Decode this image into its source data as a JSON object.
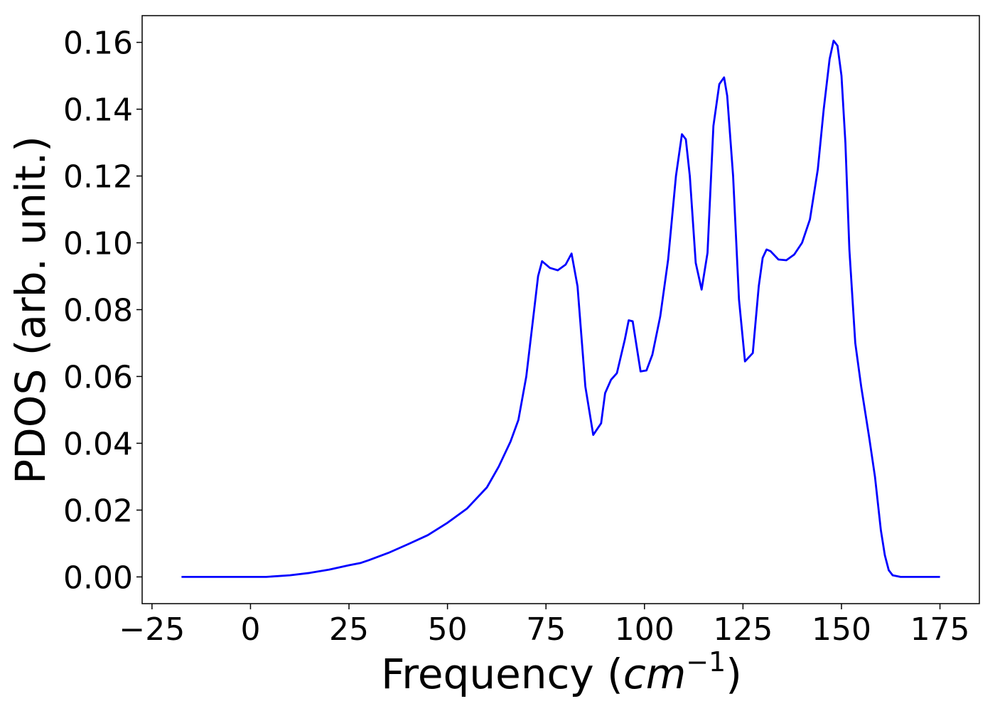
{
  "chart_data": {
    "type": "line",
    "title": "",
    "xlabel_text": "Frequency (",
    "xlabel_math": "cm",
    "xlabel_exp": "−1",
    "xlabel_close": ")",
    "ylabel": "PDOS (arb. unit.)",
    "xlim": [
      -27.5,
      185
    ],
    "ylim": [
      -0.008,
      0.168
    ],
    "xticks": [
      -25,
      0,
      25,
      50,
      75,
      100,
      125,
      150,
      175
    ],
    "xtick_labels": [
      "−25",
      "0",
      "25",
      "50",
      "75",
      "100",
      "125",
      "150",
      "175"
    ],
    "yticks": [
      0.0,
      0.02,
      0.04,
      0.06,
      0.08,
      0.1,
      0.12,
      0.14,
      0.16
    ],
    "ytick_labels": [
      "0.00",
      "0.02",
      "0.04",
      "0.06",
      "0.08",
      "0.10",
      "0.12",
      "0.14",
      "0.16"
    ],
    "grid": false,
    "series": [
      {
        "color": "#0000ff",
        "x": [
          -17.5,
          0,
          4,
          10,
          15,
          20,
          25,
          28,
          30,
          35,
          40,
          45,
          50,
          55,
          60,
          63,
          66,
          68,
          70,
          72,
          73,
          74,
          76,
          78,
          80,
          81.5,
          83,
          85,
          87,
          89,
          90,
          91.5,
          93,
          95,
          96,
          97,
          99,
          100.5,
          102,
          104,
          106,
          108,
          109.5,
          110.5,
          111.5,
          113,
          114.5,
          116,
          117.5,
          119,
          120.2,
          121,
          122.5,
          124,
          125.5,
          127.5,
          129,
          130,
          131,
          132,
          134,
          136,
          138,
          140,
          142,
          144,
          145.5,
          147,
          148,
          149,
          150,
          151,
          152,
          153.5,
          155,
          157,
          158.5,
          160,
          161,
          162,
          163,
          165,
          175
        ]
      }
    ],
    "values": [
      0.0,
      0.0,
      0.0,
      0.0005,
      0.0012,
      0.0022,
      0.0035,
      0.0042,
      0.005,
      0.0072,
      0.0098,
      0.0125,
      0.0162,
      0.0205,
      0.0268,
      0.033,
      0.0405,
      0.047,
      0.06,
      0.08,
      0.09,
      0.0945,
      0.0925,
      0.0918,
      0.0935,
      0.0968,
      0.087,
      0.057,
      0.0425,
      0.046,
      0.055,
      0.059,
      0.061,
      0.071,
      0.0768,
      0.0765,
      0.0615,
      0.0618,
      0.0665,
      0.078,
      0.095,
      0.12,
      0.1325,
      0.131,
      0.12,
      0.094,
      0.086,
      0.097,
      0.135,
      0.1475,
      0.1495,
      0.144,
      0.12,
      0.083,
      0.0645,
      0.067,
      0.087,
      0.0955,
      0.098,
      0.0975,
      0.095,
      0.0948,
      0.0965,
      0.1,
      0.107,
      0.122,
      0.14,
      0.155,
      0.1605,
      0.159,
      0.15,
      0.13,
      0.098,
      0.07,
      0.057,
      0.042,
      0.03,
      0.014,
      0.0065,
      0.002,
      0.0005,
      0.0,
      0.0
    ]
  }
}
